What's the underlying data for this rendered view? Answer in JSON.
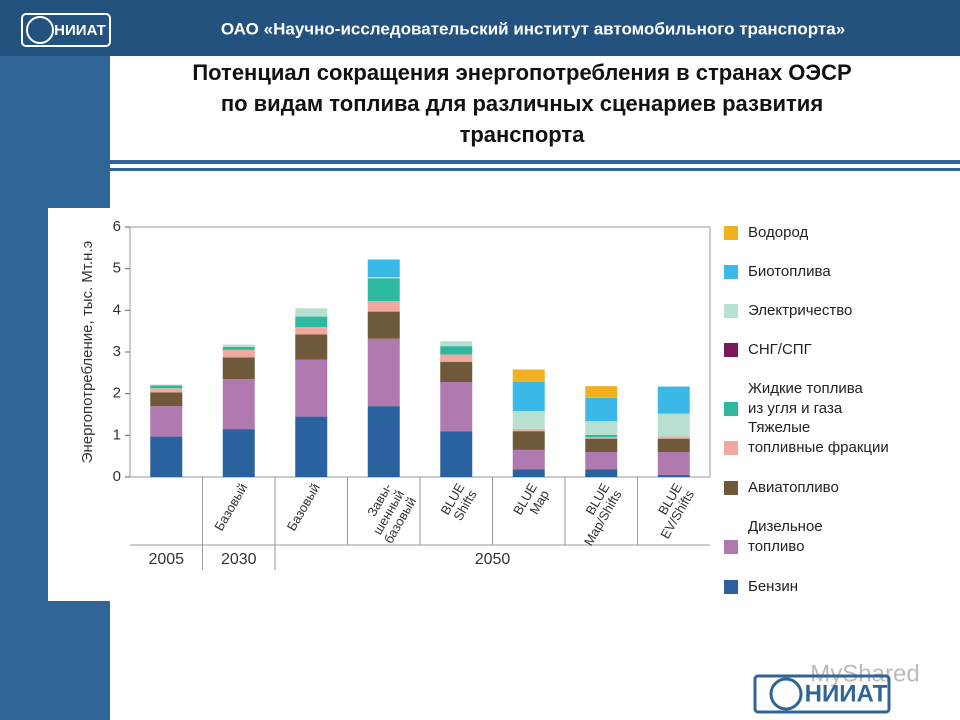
{
  "header": {
    "organization": "ОАО «Научно-исследовательский институт автомобильного транспорта»",
    "logo": "НИИАТ"
  },
  "chart_data": {
    "type": "stacked-bar",
    "title": "Потенциал сокращения энергопотребления в странах ОЭСР\nпо видам топлива для различных сценариев развития\nтранспорта",
    "y_label": "Энергопотребление, тыс. Мт.н.э",
    "categories": [
      null,
      "Базовый",
      "Базовый",
      "Завы-\nшенный\nбазовый",
      "BLUE\nShifts",
      "BLUE\nMap",
      "BLUE\nMap/Shifts",
      "BLUE\nEV/Shifts"
    ],
    "period_labels": [
      "2005",
      "2030",
      "2050"
    ],
    "ylim": [
      0,
      6
    ],
    "yticks": [
      0,
      1,
      2,
      3,
      4,
      5,
      6
    ],
    "series": [
      {
        "name": "Бензин",
        "color": "#2a62a0",
        "values": [
          0.97,
          1.15,
          1.45,
          1.7,
          1.1,
          0.18,
          0.18,
          0.05
        ]
      },
      {
        "name": "Дизельное\nтопливо",
        "color": "#b07ab0",
        "values": [
          0.73,
          1.2,
          1.37,
          1.62,
          1.18,
          0.47,
          0.42,
          0.55
        ]
      },
      {
        "name": "Авиатопливо",
        "color": "#6e5a3a",
        "values": [
          0.33,
          0.52,
          0.6,
          0.65,
          0.48,
          0.45,
          0.32,
          0.32
        ]
      },
      {
        "name": "Тяжелые\nтопливные фракции",
        "color": "#f0a8a0",
        "values": [
          0.1,
          0.18,
          0.18,
          0.25,
          0.18,
          0.05,
          0.04,
          0.05
        ]
      },
      {
        "name": "Жидкие топлива\nиз угля и газа",
        "color": "#2db8a0",
        "values": [
          0.07,
          0.07,
          0.25,
          0.55,
          0.2,
          0,
          0.05,
          0
        ]
      },
      {
        "name": "СНГ/СПГ",
        "color": "#7a1a5a",
        "values": [
          0,
          0,
          0,
          0,
          0,
          0,
          0,
          0
        ]
      },
      {
        "name": "Электричество",
        "color": "#b8e0d0",
        "values": [
          0.02,
          0.06,
          0.2,
          0.03,
          0.12,
          0.43,
          0.33,
          0.55
        ]
      },
      {
        "name": "Биотоплива",
        "color": "#3ab8e8",
        "values": [
          0,
          0,
          0,
          0.42,
          0,
          0.7,
          0.56,
          0.65
        ]
      },
      {
        "name": "Водород",
        "color": "#f0b020",
        "values": [
          0,
          0,
          0,
          0,
          0,
          0.3,
          0.28,
          0
        ]
      }
    ]
  },
  "watermark": "MyShared"
}
